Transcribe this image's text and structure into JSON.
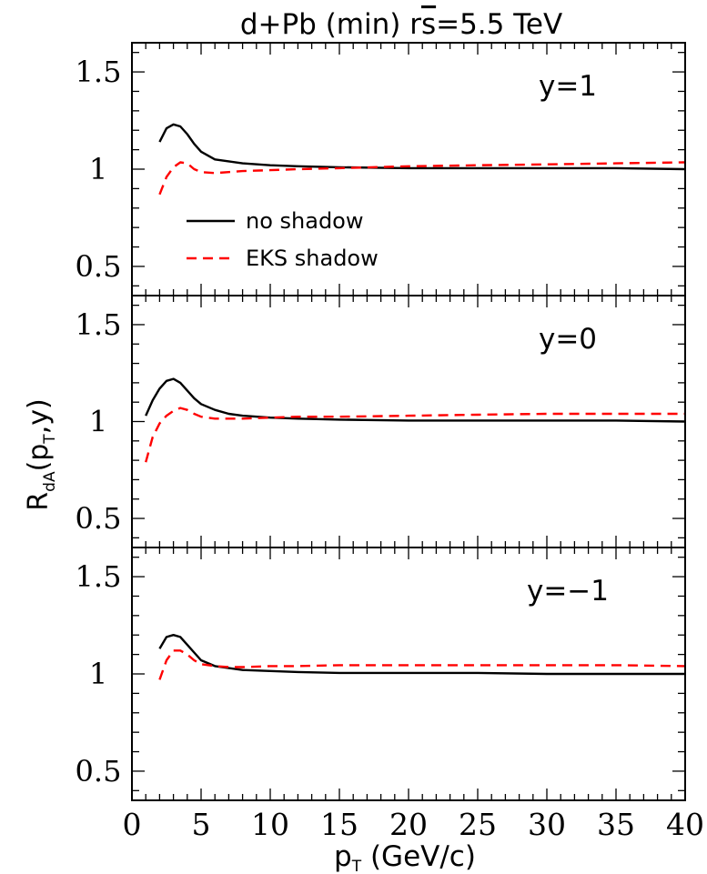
{
  "chart_data": {
    "type": "line",
    "title": "d+Pb (min) r s̄=5.5 TeV",
    "title_parts": {
      "pre": "d+Pb (min) r",
      "s": "s",
      "post": "=5.5 TeV"
    },
    "xlabel": "pT (GeV/c)",
    "xlabel_parts": {
      "main": "p",
      "sub": "T",
      "rest": " (GeV/c)"
    },
    "ylabel": "RdA(pT,y)",
    "ylabel_parts": {
      "main": "R",
      "sub1": "dA",
      "mid": "(p",
      "sub2": "T",
      "end": ",y)"
    },
    "xlim": [
      0,
      40
    ],
    "ylim": [
      0.35,
      1.65
    ],
    "xticks": [
      0,
      5,
      10,
      15,
      20,
      25,
      30,
      35,
      40
    ],
    "xtick_labels": [
      "0",
      "5",
      "10",
      "15",
      "20",
      "25",
      "30",
      "35",
      "40"
    ],
    "yticks": [
      0.5,
      1,
      1.5
    ],
    "ytick_labels": [
      "0.5",
      "1",
      "1.5"
    ],
    "legend": {
      "placement": "lower-left of top panel",
      "entries": [
        {
          "label": "no shadow",
          "color": "#000000",
          "dash": "solid"
        },
        {
          "label": "EKS shadow",
          "color": "#ff0000",
          "dash": "dashed"
        }
      ]
    },
    "panels": [
      {
        "label": "y=1",
        "series": [
          {
            "name": "no shadow",
            "color": "#000000",
            "dash": "solid",
            "x": [
              2,
              2.5,
              3,
              3.5,
              4,
              4.5,
              5,
              6,
              7,
              8,
              10,
              12,
              15,
              20,
              25,
              30,
              35,
              40
            ],
            "y": [
              1.14,
              1.21,
              1.23,
              1.22,
              1.18,
              1.13,
              1.09,
              1.05,
              1.04,
              1.03,
              1.02,
              1.015,
              1.01,
              1.005,
              1.005,
              1.005,
              1.005,
              1.0
            ]
          },
          {
            "name": "EKS shadow",
            "color": "#ff0000",
            "dash": "dashed",
            "x": [
              2,
              2.5,
              3,
              3.5,
              4,
              4.5,
              5,
              6,
              7,
              8,
              10,
              12,
              15,
              20,
              25,
              30,
              35,
              40
            ],
            "y": [
              0.87,
              0.96,
              1.01,
              1.035,
              1.03,
              1.0,
              0.985,
              0.98,
              0.985,
              0.99,
              0.995,
              1.0,
              1.005,
              1.015,
              1.02,
              1.025,
              1.03,
              1.035
            ]
          }
        ]
      },
      {
        "label": "y=0",
        "series": [
          {
            "name": "no shadow",
            "color": "#000000",
            "dash": "solid",
            "x": [
              1,
              1.5,
              2,
              2.5,
              3,
              3.5,
              4,
              4.5,
              5,
              6,
              7,
              8,
              10,
              12,
              15,
              20,
              25,
              30,
              35,
              40
            ],
            "y": [
              1.03,
              1.11,
              1.17,
              1.21,
              1.22,
              1.2,
              1.16,
              1.12,
              1.09,
              1.06,
              1.04,
              1.03,
              1.02,
              1.015,
              1.01,
              1.005,
              1.005,
              1.005,
              1.005,
              1.0
            ]
          },
          {
            "name": "EKS shadow",
            "color": "#ff0000",
            "dash": "dashed",
            "x": [
              1,
              1.5,
              2,
              2.5,
              3,
              3.5,
              4,
              4.5,
              5,
              6,
              7,
              8,
              10,
              12,
              15,
              20,
              25,
              30,
              35,
              40
            ],
            "y": [
              0.79,
              0.92,
              0.99,
              1.03,
              1.055,
              1.07,
              1.06,
              1.04,
              1.025,
              1.015,
              1.015,
              1.015,
              1.02,
              1.025,
              1.025,
              1.03,
              1.035,
              1.04,
              1.04,
              1.04
            ]
          }
        ]
      },
      {
        "label": "y=−1",
        "series": [
          {
            "name": "no shadow",
            "color": "#000000",
            "dash": "solid",
            "x": [
              2,
              2.5,
              3,
              3.5,
              4,
              4.5,
              5,
              6,
              7,
              8,
              10,
              12,
              15,
              20,
              25,
              30,
              35,
              40
            ],
            "y": [
              1.13,
              1.19,
              1.2,
              1.19,
              1.15,
              1.11,
              1.07,
              1.04,
              1.03,
              1.02,
              1.015,
              1.01,
              1.005,
              1.005,
              1.005,
              1.0,
              1.0,
              1.0
            ]
          },
          {
            "name": "EKS shadow",
            "color": "#ff0000",
            "dash": "dashed",
            "x": [
              2,
              2.5,
              3,
              3.5,
              4,
              4.5,
              5,
              6,
              7,
              8,
              10,
              12,
              15,
              20,
              25,
              30,
              35,
              40
            ],
            "y": [
              0.97,
              1.07,
              1.12,
              1.12,
              1.1,
              1.07,
              1.05,
              1.04,
              1.035,
              1.035,
              1.04,
              1.04,
              1.045,
              1.045,
              1.045,
              1.045,
              1.045,
              1.04
            ]
          }
        ]
      }
    ]
  }
}
